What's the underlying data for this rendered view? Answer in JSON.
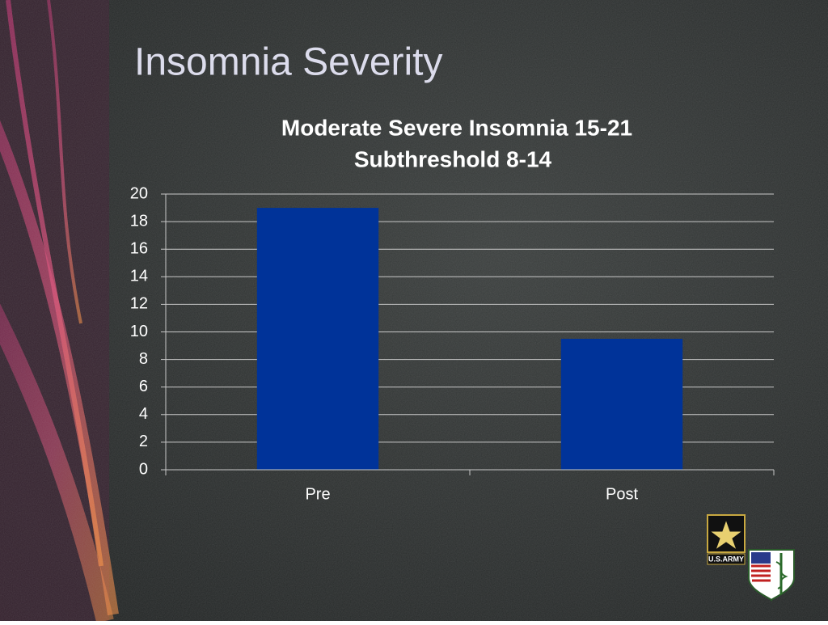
{
  "slide_title": "Insomnia Severity",
  "logo_text": "U.S.ARMY",
  "chart_data": {
    "type": "bar",
    "title": "Moderate Severe Insomnia 15-21",
    "subtitle": "Subthreshold 8-14",
    "categories": [
      "Pre",
      "Post"
    ],
    "values": [
      19,
      9.5
    ],
    "color": "#003399",
    "ylim": [
      0,
      20
    ],
    "yticks": [
      0,
      2,
      4,
      6,
      8,
      10,
      12,
      14,
      16,
      18,
      20
    ],
    "grid": true
  }
}
